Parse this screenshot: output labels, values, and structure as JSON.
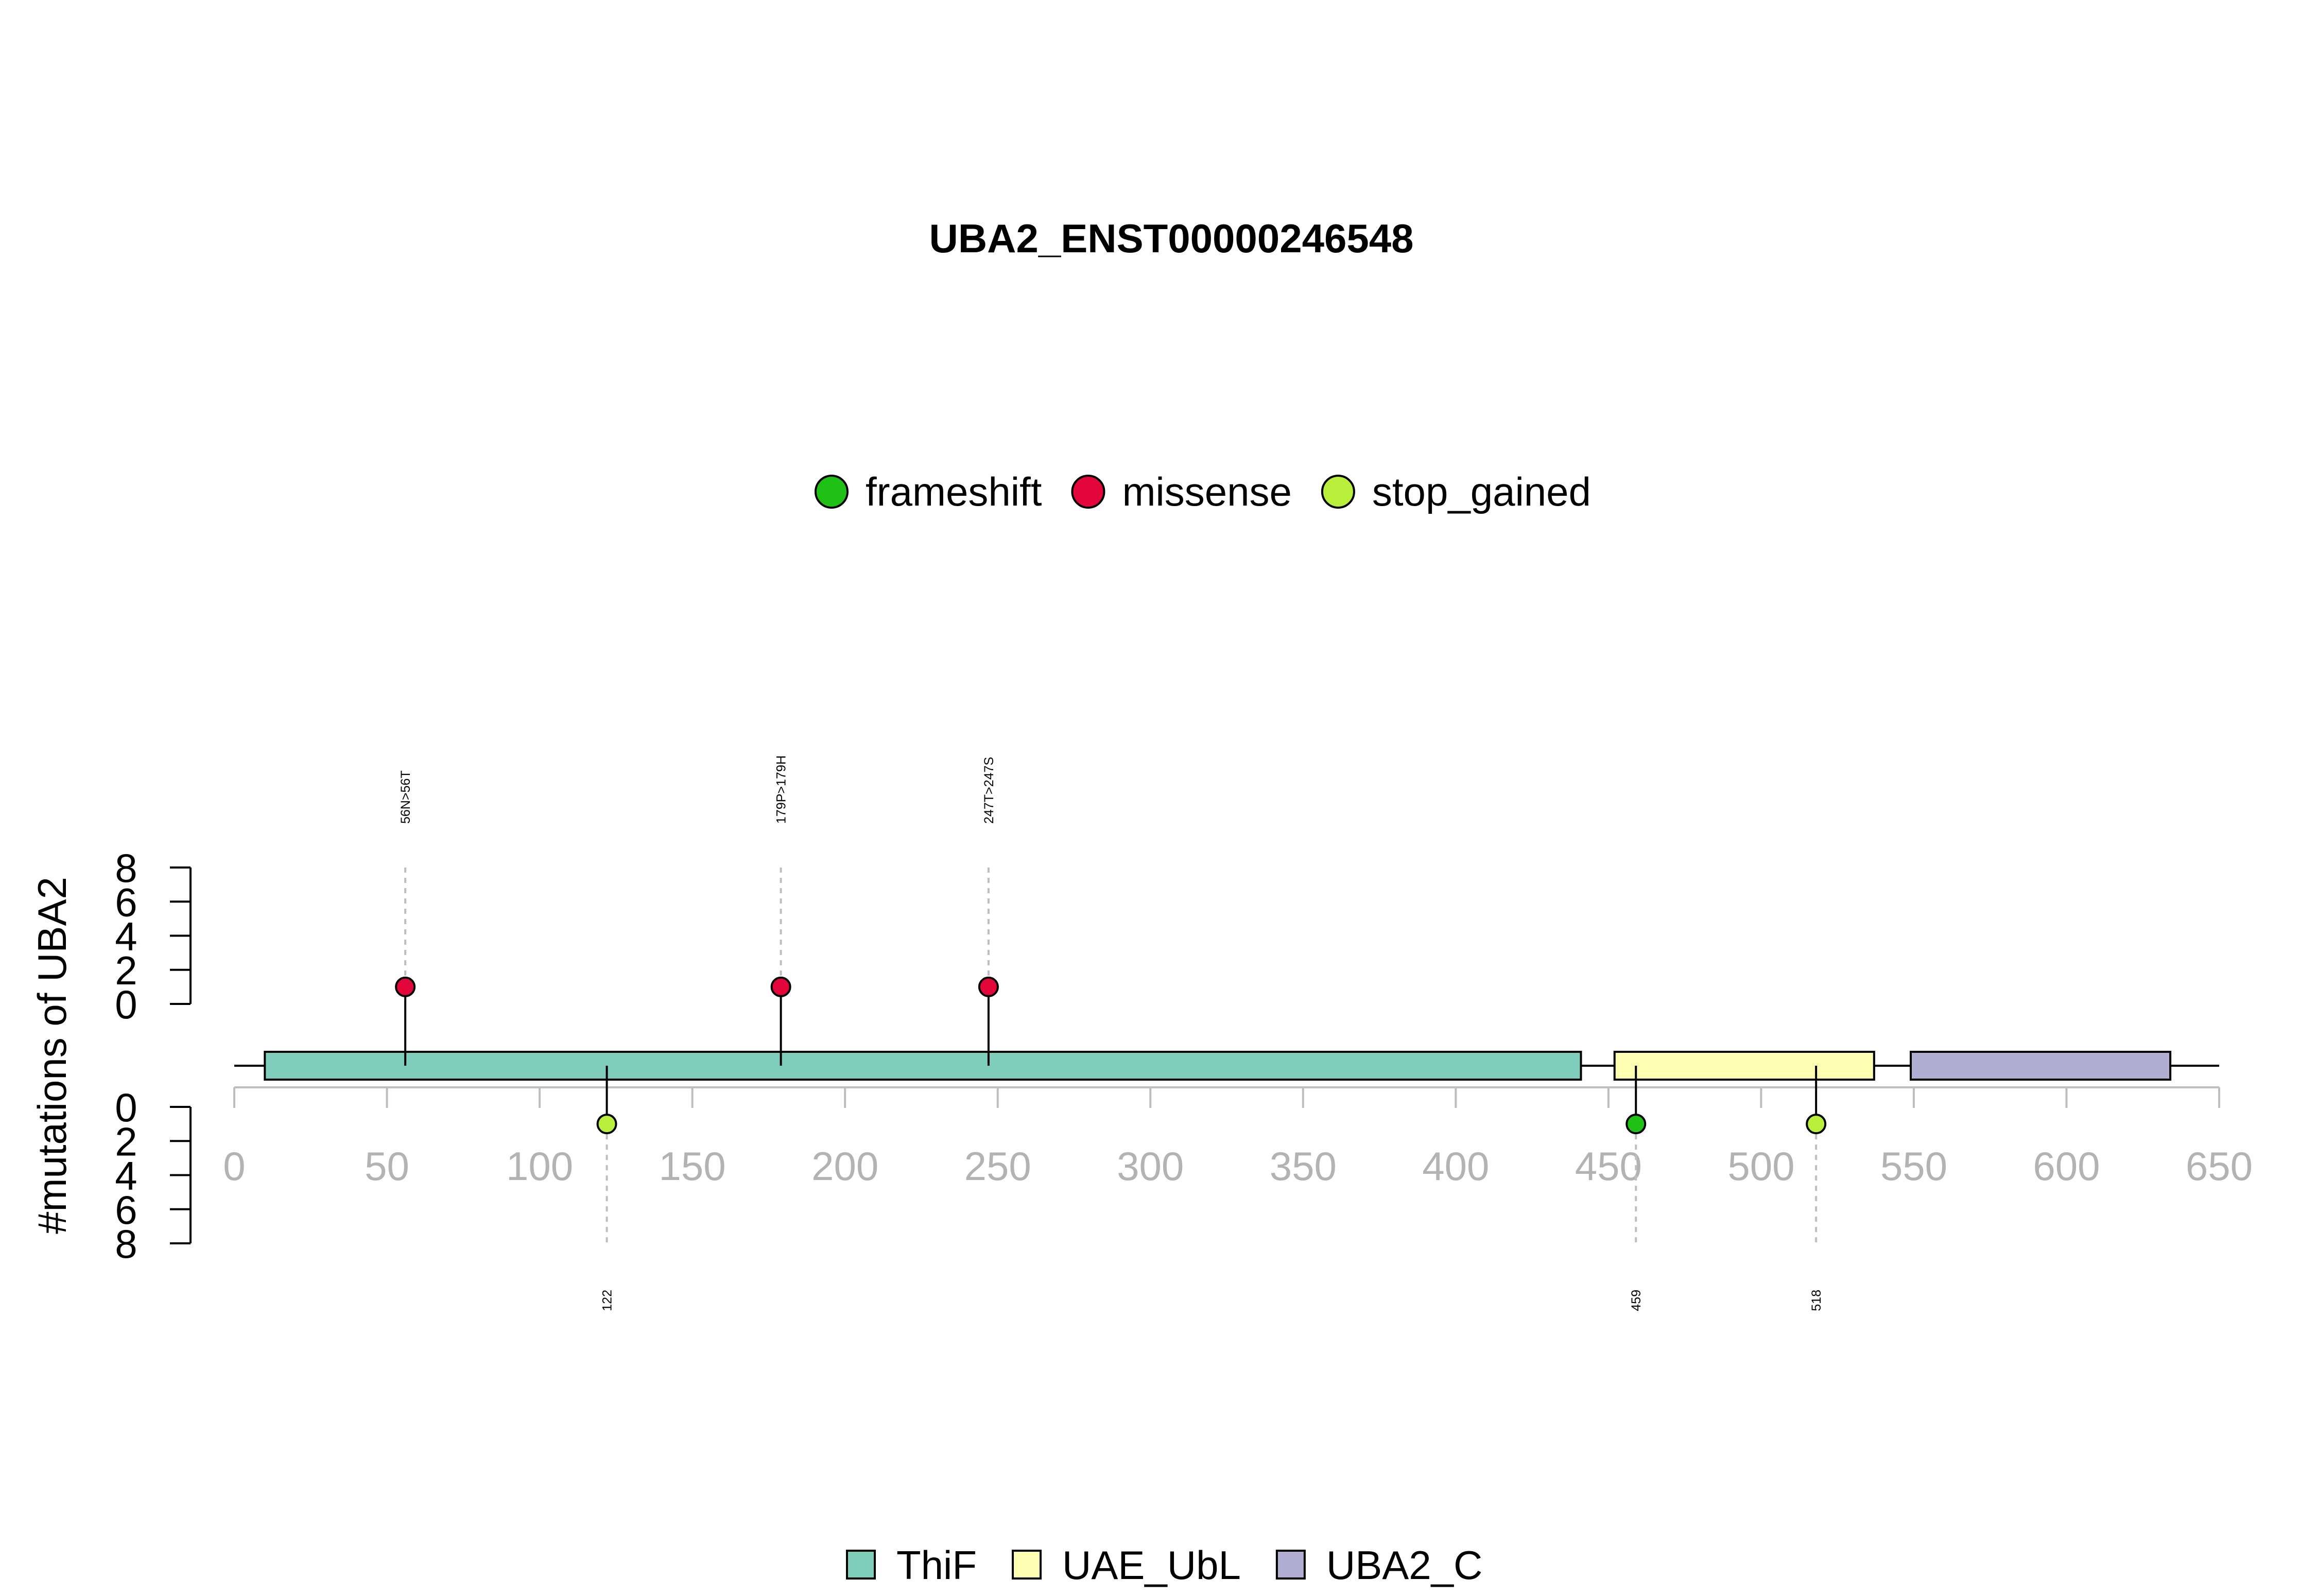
{
  "chart_data": {
    "type": "lollipop",
    "title": "UBA2_ENST00000246548",
    "ylabel": "#mutations of UBA2",
    "x_ticks": [
      0,
      50,
      100,
      150,
      200,
      250,
      300,
      350,
      400,
      450,
      500,
      550,
      600,
      650
    ],
    "xlim": [
      0,
      650
    ],
    "y_ticks_upper": [
      0,
      2,
      4,
      6,
      8
    ],
    "y_ticks_lower": [
      0,
      2,
      4,
      6,
      8
    ],
    "ylim": [
      0,
      8
    ],
    "mutation_legend": [
      {
        "label": "frameshift",
        "color": "#1FC116"
      },
      {
        "label": "missense",
        "color": "#E2063A"
      },
      {
        "label": "stop_gained",
        "color": "#B8EF3B"
      }
    ],
    "domain_legend": [
      {
        "label": "ThiF",
        "color": "#7FCDBB"
      },
      {
        "label": "UAE_UbL",
        "color": "#FFFFB2"
      },
      {
        "label": "UBA2_C",
        "color": "#B2AED2"
      }
    ],
    "domains": [
      {
        "name": "ThiF",
        "start": 10,
        "end": 441,
        "color": "#7FCDBB"
      },
      {
        "name": "UAE_UbL",
        "start": 452,
        "end": 537,
        "color": "#FFFFB2"
      },
      {
        "name": "UBA2_C",
        "start": 549,
        "end": 634,
        "color": "#B2AED2"
      }
    ],
    "mutations": [
      {
        "position": 56,
        "count": 1,
        "type": "missense",
        "side": "upper",
        "label": "56N>56T"
      },
      {
        "position": 179,
        "count": 1,
        "type": "missense",
        "side": "upper",
        "label": "179P>179H"
      },
      {
        "position": 247,
        "count": 1,
        "type": "missense",
        "side": "upper",
        "label": "247T>247S"
      },
      {
        "position": 122,
        "count": 1,
        "type": "stop_gained",
        "side": "lower",
        "label": "122"
      },
      {
        "position": 459,
        "count": 1,
        "type": "frameshift",
        "side": "lower",
        "label": "459"
      },
      {
        "position": 518,
        "count": 1,
        "type": "stop_gained",
        "side": "lower",
        "label": "518"
      }
    ]
  }
}
